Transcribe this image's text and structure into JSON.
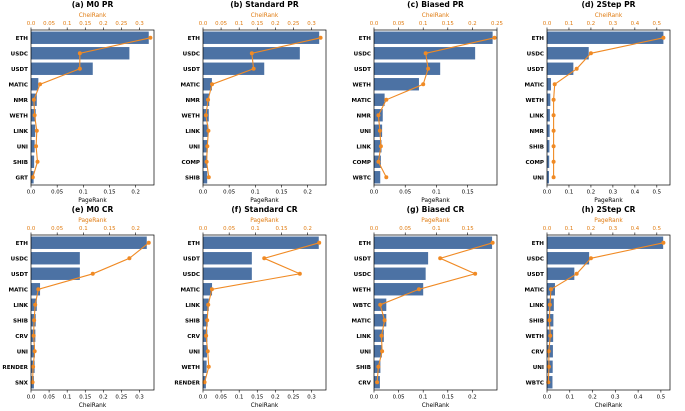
{
  "colors": {
    "bar": "#4c72a4",
    "line": "#f08a24",
    "top_axis": "#e07b10"
  },
  "chart_data": [
    {
      "type": "bar",
      "title": "(a) M0 PR",
      "bottom_label": "PageRank",
      "top_label": "CheiRank",
      "categories": [
        "ETH",
        "USDC",
        "USDT",
        "MATIC",
        "NMR",
        "WETH",
        "LINK",
        "UNI",
        "SHIB",
        "GRT"
      ],
      "bar_values": [
        0.225,
        0.188,
        0.118,
        0.014,
        0.011,
        0.009,
        0.008,
        0.007,
        0.006,
        0.005
      ],
      "line_values": [
        0.33,
        0.135,
        0.135,
        0.025,
        0.008,
        0.01,
        0.016,
        0.014,
        0.018,
        0.005
      ],
      "bar_xlim": [
        0,
        0.235
      ],
      "bar_ticks": [
        0.0,
        0.05,
        0.1,
        0.15,
        0.2
      ],
      "line_xlim": [
        0,
        0.34
      ],
      "line_ticks": [
        0.0,
        0.05,
        0.1,
        0.15,
        0.2,
        0.25,
        0.3
      ]
    },
    {
      "type": "bar",
      "title": "(b) Standard PR",
      "bottom_label": "PageRank",
      "top_label": "CheiRank",
      "categories": [
        "ETH",
        "USDC",
        "USDT",
        "MATIC",
        "NMR",
        "WETH",
        "LINK",
        "UNI",
        "COMP",
        "SHIB"
      ],
      "bar_values": [
        0.222,
        0.185,
        0.117,
        0.017,
        0.012,
        0.011,
        0.01,
        0.009,
        0.008,
        0.008
      ],
      "line_values": [
        0.325,
        0.135,
        0.14,
        0.025,
        0.014,
        0.008,
        0.015,
        0.012,
        0.01,
        0.016
      ],
      "bar_xlim": [
        0,
        0.235
      ],
      "bar_ticks": [
        0.0,
        0.05,
        0.1,
        0.15,
        0.2
      ],
      "line_xlim": [
        0,
        0.34
      ],
      "line_ticks": [
        0.0,
        0.05,
        0.1,
        0.15,
        0.2,
        0.25,
        0.3
      ]
    },
    {
      "type": "bar",
      "title": "(c) Biased PR",
      "bottom_label": "PageRank",
      "top_label": "CheiRank",
      "categories": [
        "ETH",
        "USDC",
        "USDT",
        "WETH",
        "MATIC",
        "NMR",
        "UNI",
        "LINK",
        "COMP",
        "WBTC"
      ],
      "bar_values": [
        0.19,
        0.162,
        0.106,
        0.072,
        0.017,
        0.014,
        0.013,
        0.012,
        0.011,
        0.01
      ],
      "line_values": [
        0.245,
        0.105,
        0.11,
        0.1,
        0.025,
        0.009,
        0.012,
        0.014,
        0.009,
        0.025
      ],
      "bar_xlim": [
        0,
        0.197
      ],
      "bar_ticks": [
        0.0,
        0.05,
        0.1,
        0.15
      ],
      "line_xlim": [
        0,
        0.25
      ],
      "line_ticks": [
        0.0,
        0.05,
        0.1,
        0.15,
        0.2,
        0.25
      ]
    },
    {
      "type": "bar",
      "title": "(d) 2Step PR",
      "bottom_label": "PageRank",
      "top_label": "CheiRank",
      "categories": [
        "ETH",
        "USDC",
        "USDT",
        "MATIC",
        "WETH",
        "LINK",
        "NMR",
        "SHIB",
        "COMP",
        "UNI"
      ],
      "bar_values": [
        0.53,
        0.19,
        0.12,
        0.018,
        0.015,
        0.013,
        0.012,
        0.011,
        0.01,
        0.009
      ],
      "line_values": [
        0.53,
        0.2,
        0.135,
        0.035,
        0.03,
        0.03,
        0.03,
        0.03,
        0.03,
        0.03
      ],
      "bar_xlim": [
        0,
        0.56
      ],
      "bar_ticks": [
        0.0,
        0.1,
        0.2,
        0.3,
        0.4,
        0.5
      ],
      "line_xlim": [
        0,
        0.56
      ],
      "line_ticks": [
        0.0,
        0.1,
        0.2,
        0.3,
        0.4,
        0.5
      ]
    },
    {
      "type": "bar",
      "title": "(e) M0 CR",
      "bottom_label": "CheiRank",
      "top_label": "PageRank",
      "categories": [
        "ETH",
        "USDC",
        "USDT",
        "MATIC",
        "LINK",
        "SHIB",
        "CRV",
        "UNI",
        "RENDER",
        "SNX"
      ],
      "bar_values": [
        0.32,
        0.135,
        0.135,
        0.025,
        0.016,
        0.013,
        0.012,
        0.011,
        0.01,
        0.008
      ],
      "line_values": [
        0.225,
        0.188,
        0.118,
        0.014,
        0.008,
        0.006,
        0.005,
        0.007,
        0.004,
        0.003
      ],
      "bar_xlim": [
        0,
        0.34
      ],
      "bar_ticks": [
        0.0,
        0.05,
        0.1,
        0.15,
        0.2,
        0.25,
        0.3
      ],
      "line_xlim": [
        0,
        0.235
      ],
      "line_ticks": [
        0.0,
        0.05,
        0.1,
        0.15,
        0.2
      ]
    },
    {
      "type": "bar",
      "title": "(f) Standard CR",
      "bottom_label": "CheiRank",
      "top_label": "PageRank",
      "categories": [
        "ETH",
        "USDT",
        "USDC",
        "MATIC",
        "LINK",
        "SHIB",
        "CRV",
        "UNI",
        "WETH",
        "RENDER"
      ],
      "bar_values": [
        0.32,
        0.135,
        0.135,
        0.025,
        0.016,
        0.013,
        0.012,
        0.011,
        0.01,
        0.008
      ],
      "line_values": [
        0.222,
        0.117,
        0.185,
        0.017,
        0.01,
        0.008,
        0.006,
        0.009,
        0.011,
        0.003
      ],
      "bar_xlim": [
        0,
        0.34
      ],
      "bar_ticks": [
        0.0,
        0.05,
        0.1,
        0.15,
        0.2,
        0.25,
        0.3
      ],
      "line_xlim": [
        0,
        0.235
      ],
      "line_ticks": [
        0.0,
        0.05,
        0.1,
        0.15,
        0.2
      ]
    },
    {
      "type": "bar",
      "title": "(g) Biased CR",
      "bottom_label": "CheiRank",
      "top_label": "PageRank",
      "categories": [
        "ETH",
        "USDT",
        "USDC",
        "WETH",
        "WBTC",
        "MATIC",
        "LINK",
        "UNI",
        "SHIB",
        "CRV"
      ],
      "bar_values": [
        0.24,
        0.11,
        0.105,
        0.1,
        0.025,
        0.025,
        0.02,
        0.016,
        0.013,
        0.012
      ],
      "line_values": [
        0.19,
        0.106,
        0.162,
        0.072,
        0.01,
        0.017,
        0.012,
        0.013,
        0.007,
        0.005
      ],
      "bar_xlim": [
        0,
        0.25
      ],
      "bar_ticks": [
        0.0,
        0.05,
        0.1,
        0.15,
        0.2
      ],
      "line_xlim": [
        0,
        0.197
      ],
      "line_ticks": [
        0.0,
        0.05,
        0.1,
        0.15
      ]
    },
    {
      "type": "bar",
      "title": "(h) 2Step CR",
      "bottom_label": "CheiRank",
      "top_label": "PageRank",
      "categories": [
        "ETH",
        "USDC",
        "USDT",
        "MATIC",
        "LINK",
        "SHIB",
        "WETH",
        "CRV",
        "UNI",
        "WBTC"
      ],
      "bar_values": [
        0.51,
        0.185,
        0.12,
        0.035,
        0.03,
        0.028,
        0.027,
        0.026,
        0.025,
        0.024
      ],
      "line_values": [
        0.53,
        0.2,
        0.135,
        0.018,
        0.013,
        0.011,
        0.015,
        0.008,
        0.009,
        0.006
      ],
      "bar_xlim": [
        0,
        0.54
      ],
      "bar_ticks": [
        0.0,
        0.1,
        0.2,
        0.3,
        0.4,
        0.5
      ],
      "line_xlim": [
        0,
        0.56
      ],
      "line_ticks": [
        0.0,
        0.1,
        0.2,
        0.3,
        0.4,
        0.5
      ]
    }
  ]
}
